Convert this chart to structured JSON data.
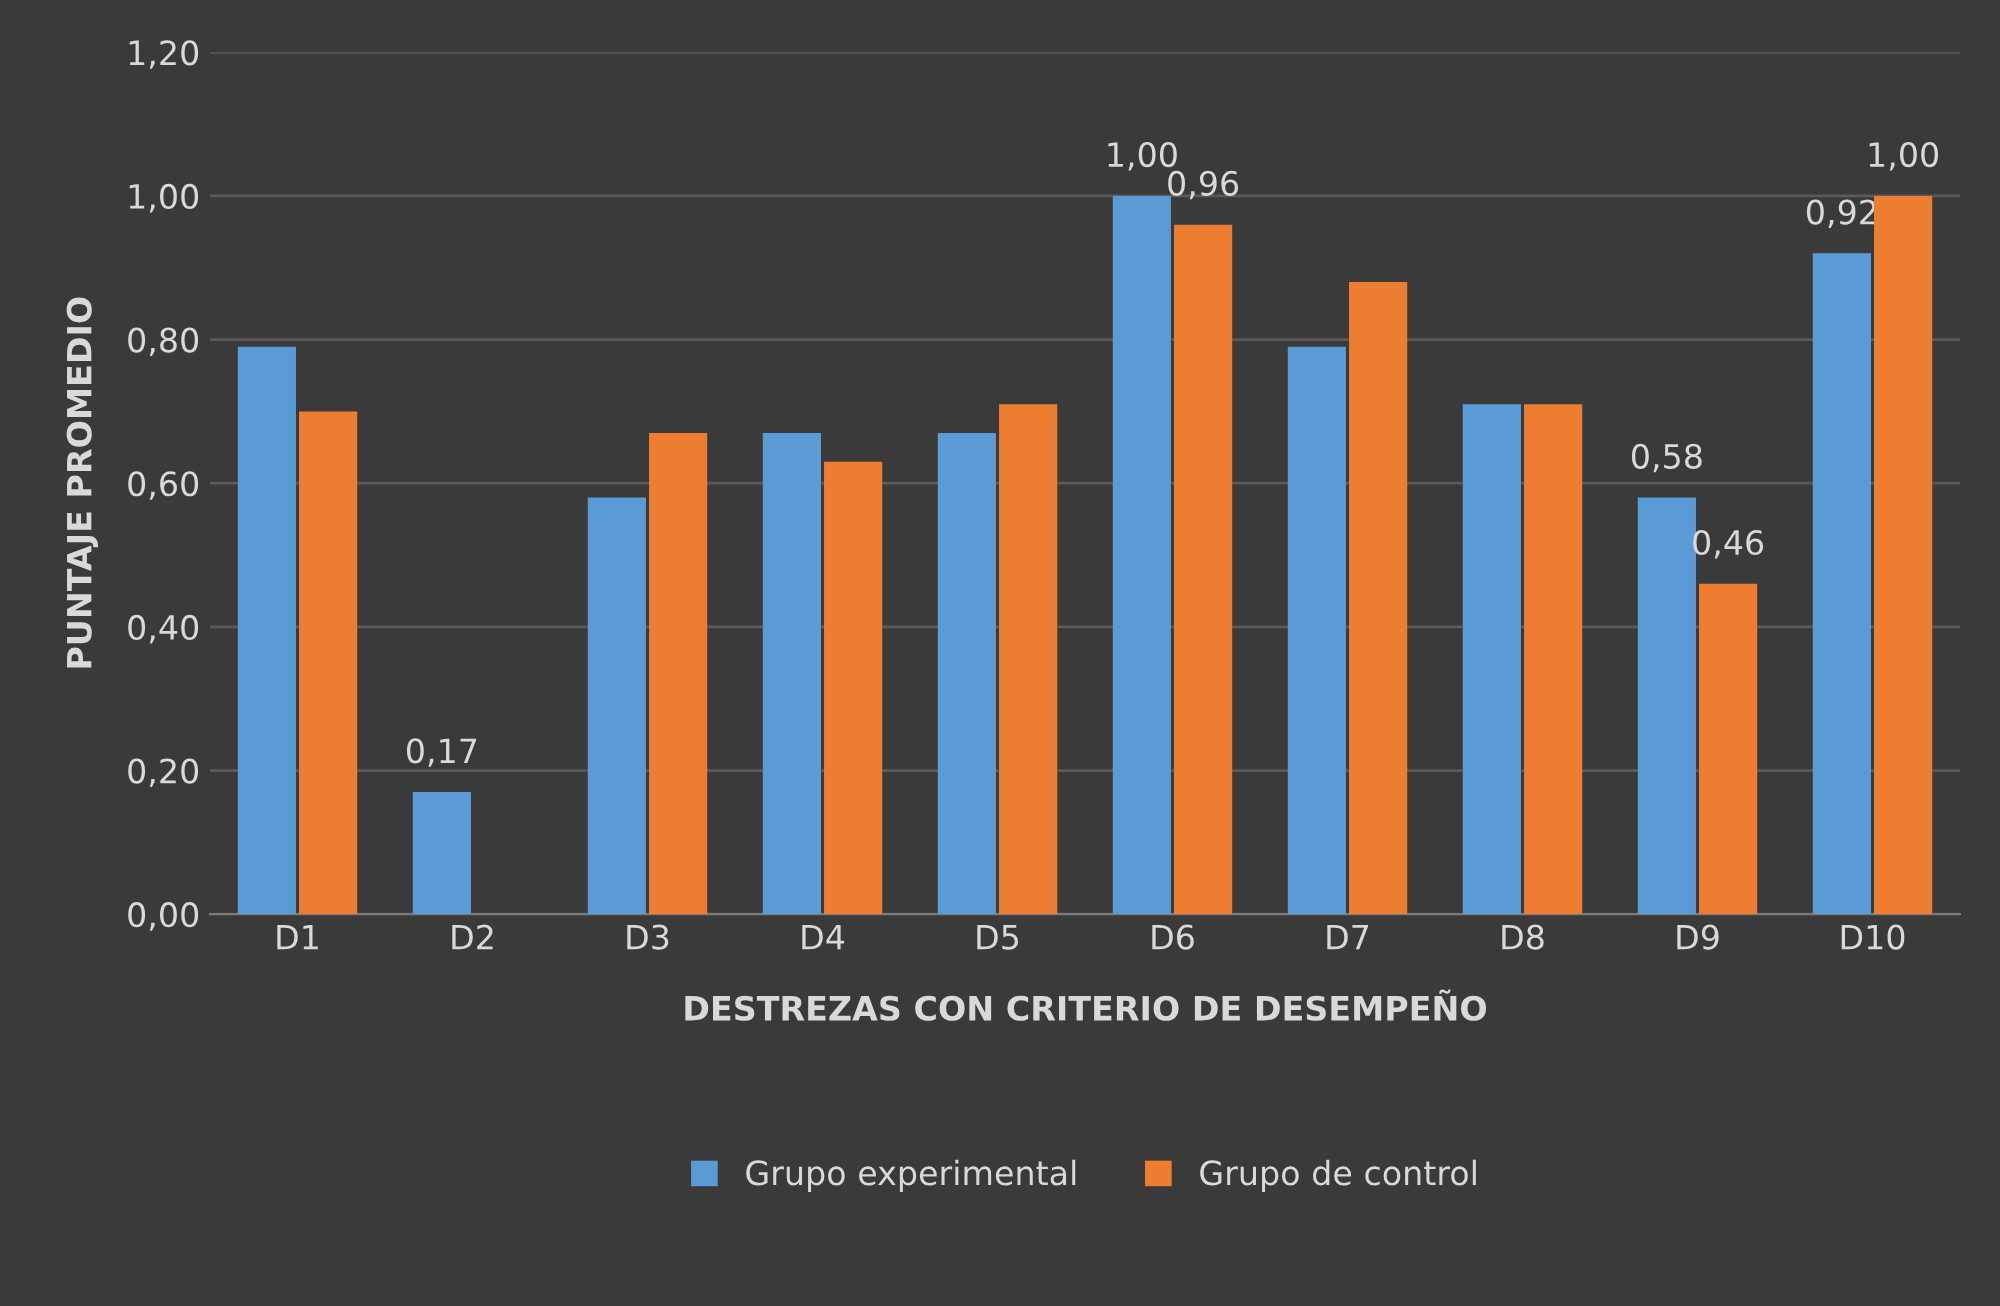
{
  "chart_data": {
    "type": "bar",
    "xlabel": "DESTREZAS CON CRITERIO DE DESEMPEÑO",
    "ylabel": "PUNTAJE PROMEDIO",
    "categories": [
      "D1",
      "D2",
      "D3",
      "D4",
      "D5",
      "D6",
      "D7",
      "D8",
      "D9",
      "D10"
    ],
    "series": [
      {
        "name": "Grupo experimental",
        "color": "#5b9bd5",
        "values": [
          0.79,
          0.17,
          0.58,
          0.67,
          0.67,
          1.0,
          0.79,
          0.71,
          0.58,
          0.92
        ],
        "value_labels": [
          null,
          "0,17",
          null,
          null,
          null,
          "1,00",
          null,
          null,
          "0,58",
          "0,92"
        ]
      },
      {
        "name": "Grupo de control",
        "color": "#ed7d31",
        "values": [
          0.7,
          null,
          0.67,
          0.63,
          0.71,
          0.96,
          0.88,
          0.71,
          0.46,
          1.0
        ],
        "value_labels": [
          null,
          null,
          null,
          null,
          null,
          "0,96",
          null,
          null,
          "0,46",
          "1,00"
        ]
      }
    ],
    "ylim": [
      0,
      1.2
    ],
    "yticks": [
      {
        "value": 0,
        "label": "0,00"
      },
      {
        "value": 0.2,
        "label": "0,20"
      },
      {
        "value": 0.4,
        "label": "0,40"
      },
      {
        "value": 0.6,
        "label": "0,60"
      },
      {
        "value": 0.8,
        "label": "0,80"
      },
      {
        "value": 1.0,
        "label": "1,00"
      },
      {
        "value": 1.2,
        "label": "1,20"
      }
    ],
    "grid": "y",
    "legend": "bottom"
  }
}
